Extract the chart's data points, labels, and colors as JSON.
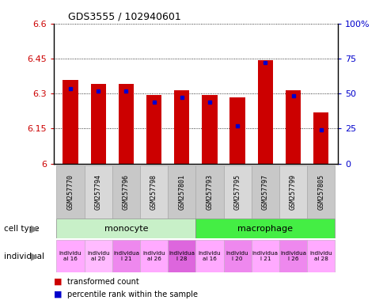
{
  "title": "GDS3555 / 102940601",
  "samples": [
    "GSM257770",
    "GSM257794",
    "GSM257796",
    "GSM257798",
    "GSM257801",
    "GSM257793",
    "GSM257795",
    "GSM257797",
    "GSM257799",
    "GSM257805"
  ],
  "red_values": [
    6.36,
    6.34,
    6.34,
    6.295,
    6.315,
    6.295,
    6.285,
    6.445,
    6.315,
    6.22
  ],
  "blue_values": [
    6.32,
    6.31,
    6.31,
    6.265,
    6.285,
    6.265,
    6.16,
    6.435,
    6.29,
    6.145
  ],
  "ymin": 6.0,
  "ymax": 6.6,
  "yticks": [
    6.0,
    6.15,
    6.3,
    6.45,
    6.6
  ],
  "ytick_labels": [
    "6",
    "6.15",
    "6.3",
    "6.45",
    "6.6"
  ],
  "right_yticks": [
    0,
    25,
    50,
    75,
    100
  ],
  "right_ytick_labels": [
    "0",
    "25",
    "50",
    "75",
    "100%"
  ],
  "monocyte_color": "#c8f0c8",
  "macrophage_color": "#44ee44",
  "bar_color": "#cc0000",
  "dot_color": "#0000cc",
  "bar_width": 0.55,
  "background_color": "#ffffff",
  "legend_red": "transformed count",
  "legend_blue": "percentile rank within the sample",
  "left_axis_color": "#cc0000",
  "right_axis_color": "#0000cc",
  "indiv_labels": [
    "individu\nal 16",
    "individu\nal 20",
    "individua\nl 21",
    "individu\nal 26",
    "individua\nl 28",
    "individu\nal 16",
    "individu\nl 20",
    "individua\nl 21",
    "individua\nl 26",
    "individu\nal 28"
  ],
  "indiv_colors": [
    "#ffaaff",
    "#ffbbff",
    "#ee88ee",
    "#ffaaff",
    "#dd66dd",
    "#ffaaff",
    "#ee88ee",
    "#ffaaff",
    "#ee88ee",
    "#ffaaff"
  ],
  "sample_col_colors": [
    "#c8c8c8",
    "#d8d8d8",
    "#c8c8c8",
    "#d8d8d8",
    "#c8c8c8",
    "#c8c8c8",
    "#d8d8d8",
    "#c8c8c8",
    "#d8d8d8",
    "#c8c8c8"
  ]
}
